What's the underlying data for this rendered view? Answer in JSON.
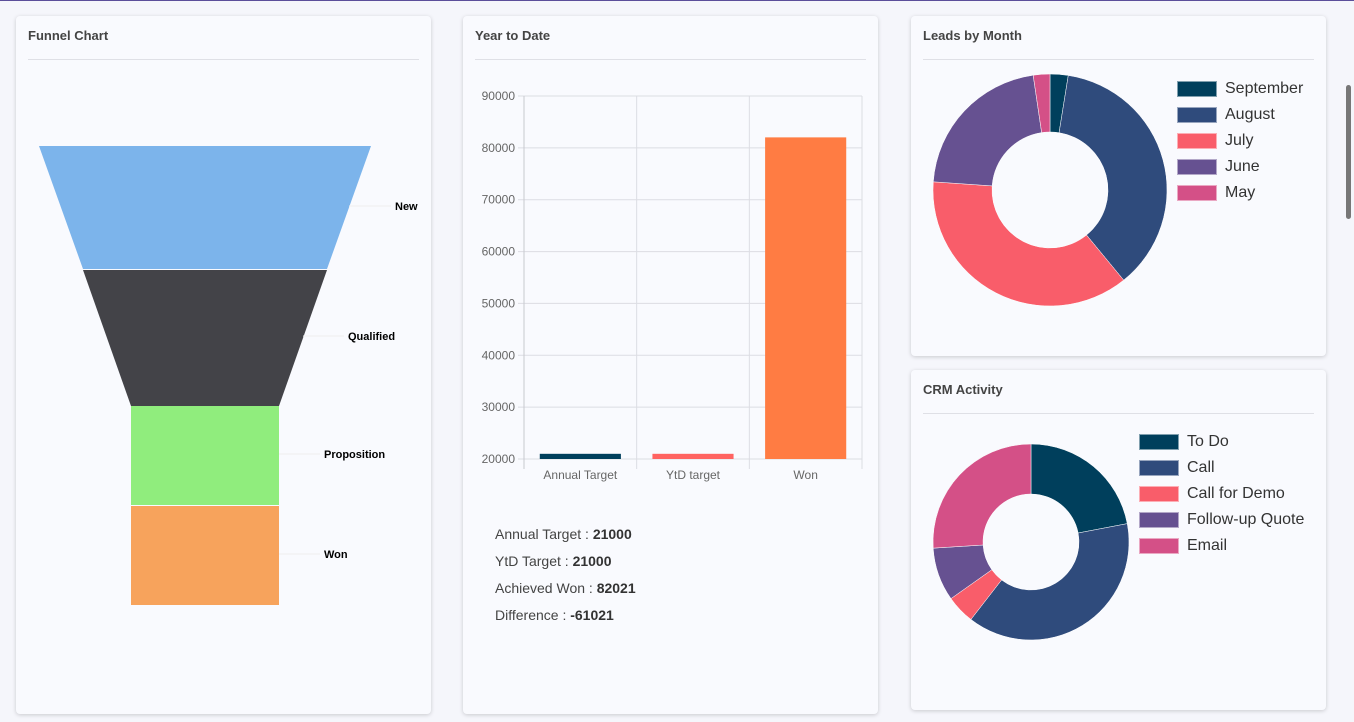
{
  "funnel": {
    "title": "Funnel Chart",
    "stages": [
      {
        "label": "New",
        "color": "#7cb4eb"
      },
      {
        "label": "Qualified",
        "color": "#434348"
      },
      {
        "label": "Proposition",
        "color": "#90ed7d"
      },
      {
        "label": "Won",
        "color": "#f7a35c"
      }
    ]
  },
  "ytd": {
    "title": "Year to Date",
    "stats": [
      {
        "label": "Annual Target : ",
        "value": "21000"
      },
      {
        "label": "YtD Target : ",
        "value": "21000"
      },
      {
        "label": "Achieved Won : ",
        "value": "82021"
      },
      {
        "label": "Difference : ",
        "value": "-61021"
      }
    ]
  },
  "leads": {
    "title": "Leads by Month"
  },
  "crm": {
    "title": "CRM Activity"
  },
  "chart_data": [
    {
      "type": "bar",
      "categories": [
        "Annual Target",
        "YtD target",
        "Won"
      ],
      "values": [
        21000,
        21000,
        82021
      ],
      "colors": [
        "#003f5c",
        "#ff6361",
        "#ff7c43"
      ],
      "ylim": [
        20000,
        90000
      ],
      "yticks": [
        20000,
        30000,
        40000,
        50000,
        60000,
        70000,
        80000,
        90000
      ],
      "grid": true
    },
    {
      "type": "pie",
      "donut": true,
      "labels": [
        "September",
        "August",
        "July",
        "June",
        "May"
      ],
      "values": [
        2.5,
        36.7,
        37.0,
        21.6,
        2.3
      ],
      "colors": [
        "#003f5c",
        "#2f4b7c",
        "#f95d6a",
        "#665191",
        "#d45087"
      ],
      "legend": "right"
    },
    {
      "type": "pie",
      "donut": true,
      "labels": [
        "To Do",
        "Call",
        "Call for Demo",
        "Follow-up Quote",
        "Email"
      ],
      "values": [
        22.0,
        38.5,
        4.7,
        8.8,
        26.0
      ],
      "colors": [
        "#003f5c",
        "#2f4b7c",
        "#f95d6a",
        "#665191",
        "#d45087"
      ],
      "legend": "right"
    }
  ]
}
